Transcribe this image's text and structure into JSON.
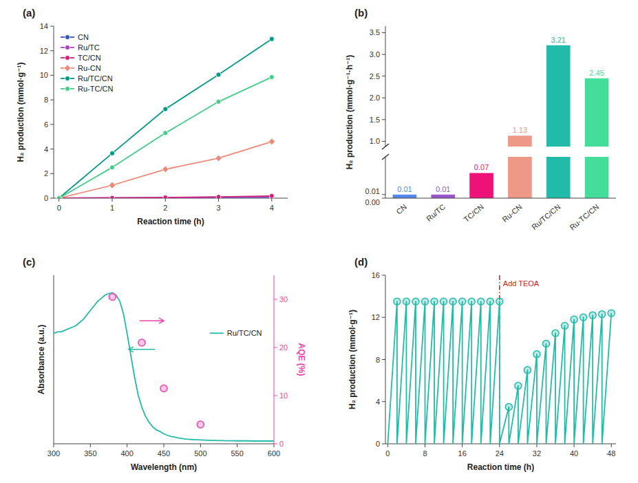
{
  "chart_data": [
    {
      "type": "line",
      "title": "(a)",
      "xlabel": "Reaction time (h)",
      "ylabel": "H₂ production (mmol·g⁻¹)",
      "x": [
        0,
        1,
        2,
        3,
        4
      ],
      "xlim": [
        -0.1,
        4.3
      ],
      "xticks": [
        0,
        1,
        2,
        3,
        4
      ],
      "ylim": [
        0,
        14
      ],
      "yticks": [
        0,
        2,
        4,
        6,
        8,
        10,
        12,
        14
      ],
      "grid": false,
      "legend": "upper left",
      "series": [
        {
          "name": "CN",
          "color": "#3355bb",
          "marker": "circle",
          "values": [
            0,
            0.02,
            0.04,
            0.06,
            0.08
          ]
        },
        {
          "name": "Ru/TC",
          "color": "#aa44bb",
          "marker": "circle",
          "values": [
            0,
            0.02,
            0.04,
            0.08,
            0.12
          ]
        },
        {
          "name": "TC/CN",
          "color": "#cc2277",
          "marker": "circle",
          "values": [
            0,
            0.02,
            0.05,
            0.1,
            0.18
          ]
        },
        {
          "name": "Ru-CN",
          "color": "#ee8877",
          "marker": "diamond",
          "values": [
            0,
            1.05,
            2.35,
            3.25,
            4.6
          ],
          "error": [
            0,
            0.05,
            0.08,
            0.08,
            0.1
          ]
        },
        {
          "name": "Ru/TC/CN",
          "color": "#009988",
          "marker": "circle",
          "values": [
            0,
            3.65,
            7.25,
            10.05,
            12.95
          ],
          "error": [
            0,
            0.1,
            0.1,
            0.12,
            0.15
          ]
        },
        {
          "name": "Ru-TC/CN",
          "color": "#44cc88",
          "marker": "circle",
          "values": [
            0,
            2.5,
            5.3,
            7.85,
            9.85
          ],
          "error": [
            0,
            0.08,
            0.1,
            0.12,
            0.12
          ]
        }
      ]
    },
    {
      "type": "bar",
      "title": "(b)",
      "ylabel": "H₂ production (mmol·g⁻¹·h⁻¹)",
      "categories": [
        "CN",
        "Ru/TC",
        "TC/CN",
        "Ru-CN",
        "Ru/TC/CN",
        "Ru-TC/CN"
      ],
      "values": [
        0.01,
        0.01,
        0.07,
        1.13,
        3.21,
        2.45
      ],
      "colors": [
        "#5588ee",
        "#9955cc",
        "#ee1177",
        "#ee9988",
        "#22bbaa",
        "#44dd99"
      ],
      "data_labels": true,
      "grid": false,
      "ylim": [
        [
          0,
          0.115
        ],
        [
          0.88,
          3.65
        ]
      ],
      "yticks": [
        [
          {
            "value": 0,
            "label": "0.00"
          },
          0.01
        ],
        [
          {
            "value": 1.0,
            "label": "1.0"
          },
          1.5,
          {
            "value": 2.0,
            "label": "2.0"
          },
          2.5,
          {
            "value": 3.0,
            "label": "3.0"
          },
          3.5
        ]
      ]
    },
    {
      "type": "line",
      "title": "(c)",
      "xlabel": "Wavelength (nm)",
      "ylabel": "Absorbance (a.u.)",
      "y2label": "AQE (%)",
      "xlim": [
        300,
        600
      ],
      "xticks": [
        300,
        350,
        400,
        450,
        500,
        550,
        600
      ],
      "ylim": [
        0,
        1.1
      ],
      "yticks": [],
      "y2lim": [
        0,
        35
      ],
      "y2ticks": [
        0,
        10,
        20,
        30
      ],
      "grid": false,
      "legend": "right",
      "series": [
        {
          "name": "Ru/TC/CN",
          "color": "#22bbaa",
          "x": [
            300,
            305,
            310,
            315,
            320,
            325,
            330,
            335,
            340,
            345,
            350,
            355,
            360,
            365,
            370,
            375,
            380,
            385,
            390,
            395,
            400,
            405,
            410,
            415,
            420,
            425,
            430,
            435,
            440,
            445,
            450,
            455,
            460,
            465,
            470,
            475,
            480,
            485,
            490,
            495,
            500,
            505,
            510,
            515,
            520,
            525,
            530,
            535,
            540,
            545,
            550,
            555,
            560,
            565,
            570,
            575,
            580,
            585,
            590,
            595,
            600
          ],
          "values": [
            0.72,
            0.73,
            0.73,
            0.74,
            0.75,
            0.76,
            0.77,
            0.79,
            0.81,
            0.84,
            0.87,
            0.9,
            0.93,
            0.95,
            0.97,
            0.98,
            0.985,
            0.97,
            0.93,
            0.85,
            0.72,
            0.58,
            0.44,
            0.32,
            0.24,
            0.18,
            0.14,
            0.11,
            0.09,
            0.08,
            0.065,
            0.055,
            0.048,
            0.043,
            0.038,
            0.034,
            0.031,
            0.029,
            0.027,
            0.026,
            0.025,
            0.024,
            0.023,
            0.022,
            0.022,
            0.021,
            0.021,
            0.02,
            0.02,
            0.02,
            0.019,
            0.019,
            0.019,
            0.019,
            0.018,
            0.018,
            0.018,
            0.018,
            0.018,
            0.018,
            0.018
          ]
        },
        {
          "type": "scatter",
          "axis": "y2",
          "marker": "circle",
          "color": "#ee44aa",
          "x": [
            380,
            420,
            450,
            500
          ],
          "values": [
            30.5,
            21.0,
            11.5,
            4.0
          ]
        }
      ]
    },
    {
      "type": "line",
      "title": "(d)",
      "xlabel": "Reaction time (h)",
      "ylabel": "H₂ production (mmol·g⁻¹)",
      "xlim": [
        -0.5,
        49
      ],
      "xticks": [
        0,
        8,
        16,
        24,
        32,
        40,
        48
      ],
      "ylim": [
        0,
        16
      ],
      "yticks": [
        0,
        4,
        8,
        12,
        16
      ],
      "grid": false,
      "annotations": [
        {
          "text": "Add TEOA",
          "x": 24,
          "color": "#cc2222",
          "line_style": "dashdot"
        }
      ],
      "series": [
        {
          "color": "#22bbaa",
          "x": [
            0,
            2,
            2,
            4,
            4,
            6,
            6,
            8,
            8,
            10,
            10,
            12,
            12,
            14,
            14,
            16,
            16,
            18,
            18,
            20,
            20,
            22,
            22,
            24,
            24,
            26,
            26,
            28,
            28,
            30,
            30,
            32,
            32,
            34,
            34,
            36,
            36,
            38,
            38,
            40,
            40,
            42,
            42,
            44,
            44,
            46,
            46,
            48
          ],
          "values": [
            0,
            13.5,
            0,
            13.5,
            0,
            13.5,
            0,
            13.5,
            0,
            13.5,
            0,
            13.5,
            0,
            13.5,
            0,
            13.5,
            0,
            13.5,
            0,
            13.5,
            0,
            13.5,
            0,
            13.5,
            0,
            3.5,
            0,
            5.5,
            0,
            7.0,
            0,
            8.5,
            0,
            9.5,
            0,
            10.5,
            0,
            11.2,
            0,
            11.8,
            0,
            12.0,
            0,
            12.2,
            0,
            12.3,
            0,
            12.4
          ]
        },
        {
          "type": "scatter",
          "marker": "circle",
          "color": "#22bbaa",
          "x": [
            2,
            4,
            6,
            8,
            10,
            12,
            14,
            16,
            18,
            20,
            22,
            24,
            26,
            28,
            30,
            32,
            34,
            36,
            38,
            40,
            42,
            44,
            46,
            48
          ],
          "values": [
            13.5,
            13.5,
            13.5,
            13.5,
            13.5,
            13.5,
            13.5,
            13.5,
            13.5,
            13.5,
            13.5,
            13.5,
            3.5,
            5.5,
            7.0,
            8.5,
            9.5,
            10.5,
            11.2,
            11.8,
            12.0,
            12.2,
            12.3,
            12.4
          ]
        }
      ]
    }
  ]
}
